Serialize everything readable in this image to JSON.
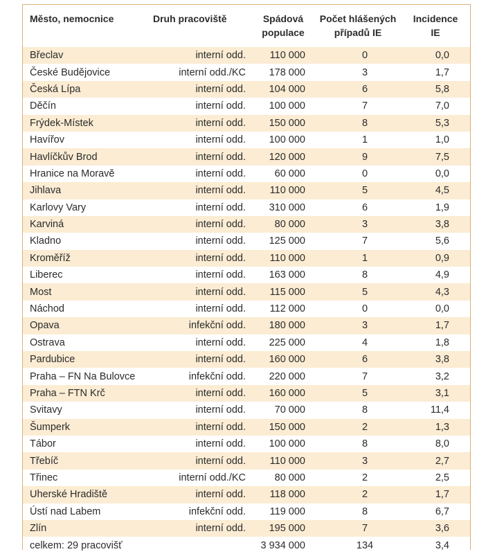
{
  "table": {
    "headers": {
      "city": "Město, nemocnice",
      "type": "Druh pracoviště",
      "population_line1": "Spádová",
      "population_line2": "populace",
      "cases_line1": "Počet hlášených",
      "cases_line2": "případů IE",
      "incidence_line1": "Incidence",
      "incidence_line2": "IE"
    },
    "rows": [
      {
        "city": "Břeclav",
        "type": "interní odd.",
        "population": "110 000",
        "cases": "0",
        "incidence": "0,0"
      },
      {
        "city": "České Budějovice",
        "type": "interní odd./KC",
        "population": "178 000",
        "cases": "3",
        "incidence": "1,7"
      },
      {
        "city": "Česká Lípa",
        "type": "interní odd.",
        "population": "104 000",
        "cases": "6",
        "incidence": "5,8"
      },
      {
        "city": "Děčín",
        "type": "interní odd.",
        "population": "100 000",
        "cases": "7",
        "incidence": "7,0"
      },
      {
        "city": "Frýdek-Místek",
        "type": "interní odd.",
        "population": "150 000",
        "cases": "8",
        "incidence": "5,3"
      },
      {
        "city": "Havířov",
        "type": "interní odd.",
        "population": "100 000",
        "cases": "1",
        "incidence": "1,0"
      },
      {
        "city": "Havlíčkův Brod",
        "type": "interní odd.",
        "population": "120 000",
        "cases": "9",
        "incidence": "7,5"
      },
      {
        "city": "Hranice na Moravě",
        "type": "interní odd.",
        "population": "60 000",
        "cases": "0",
        "incidence": "0,0"
      },
      {
        "city": "Jihlava",
        "type": "interní odd.",
        "population": "110 000",
        "cases": "5",
        "incidence": "4,5"
      },
      {
        "city": "Karlovy Vary",
        "type": "interní odd.",
        "population": "310 000",
        "cases": "6",
        "incidence": "1,9"
      },
      {
        "city": "Karviná",
        "type": "interní odd.",
        "population": "80 000",
        "cases": "3",
        "incidence": "3,8"
      },
      {
        "city": "Kladno",
        "type": "interní odd.",
        "population": "125 000",
        "cases": "7",
        "incidence": "5,6"
      },
      {
        "city": "Kroměříž",
        "type": "interní odd.",
        "population": "110 000",
        "cases": "1",
        "incidence": "0,9"
      },
      {
        "city": "Liberec",
        "type": "interní odd.",
        "population": "163 000",
        "cases": "8",
        "incidence": "4,9"
      },
      {
        "city": "Most",
        "type": "interní odd.",
        "population": "115 000",
        "cases": "5",
        "incidence": "4,3"
      },
      {
        "city": "Náchod",
        "type": "interní odd.",
        "population": "112 000",
        "cases": "0",
        "incidence": "0,0"
      },
      {
        "city": "Opava",
        "type": "infekční odd.",
        "population": "180 000",
        "cases": "3",
        "incidence": "1,7"
      },
      {
        "city": "Ostrava",
        "type": "interní odd.",
        "population": "225 000",
        "cases": "4",
        "incidence": "1,8"
      },
      {
        "city": "Pardubice",
        "type": "interní odd.",
        "population": "160 000",
        "cases": "6",
        "incidence": "3,8"
      },
      {
        "city": "Praha – FN Na Bulovce",
        "type": "infekční odd.",
        "population": "220 000",
        "cases": "7",
        "incidence": "3,2"
      },
      {
        "city": "Praha – FTN Krč",
        "type": "interní odd.",
        "population": "160 000",
        "cases": "5",
        "incidence": "3,1"
      },
      {
        "city": "Svitavy",
        "type": "interní odd.",
        "population": "70 000",
        "cases": "8",
        "incidence": "11,4"
      },
      {
        "city": "Šumperk",
        "type": "interní odd.",
        "population": "150 000",
        "cases": "2",
        "incidence": "1,3"
      },
      {
        "city": "Tábor",
        "type": "interní odd.",
        "population": "100 000",
        "cases": "8",
        "incidence": "8,0"
      },
      {
        "city": "Třebíč",
        "type": "interní odd.",
        "population": "110 000",
        "cases": "3",
        "incidence": "2,7"
      },
      {
        "city": "Třinec",
        "type": "interní odd./KC",
        "population": "80 000",
        "cases": "2",
        "incidence": "2,5"
      },
      {
        "city": "Uherské Hradiště",
        "type": "interní odd.",
        "population": "118 000",
        "cases": "2",
        "incidence": "1,7"
      },
      {
        "city": "Ústí nad Labem",
        "type": "infekční odd.",
        "population": "119 000",
        "cases": "8",
        "incidence": "6,7"
      },
      {
        "city": "Zlín",
        "type": "interní odd.",
        "population": "195 000",
        "cases": "7",
        "incidence": "3,6"
      }
    ],
    "total": {
      "city": "celkem: 29 pracovišť",
      "type": "",
      "population": "3 934 000",
      "cases": "134",
      "incidence": "3,4"
    },
    "colors": {
      "stripe": "#fbecd3",
      "border": "#d9b07a"
    }
  }
}
